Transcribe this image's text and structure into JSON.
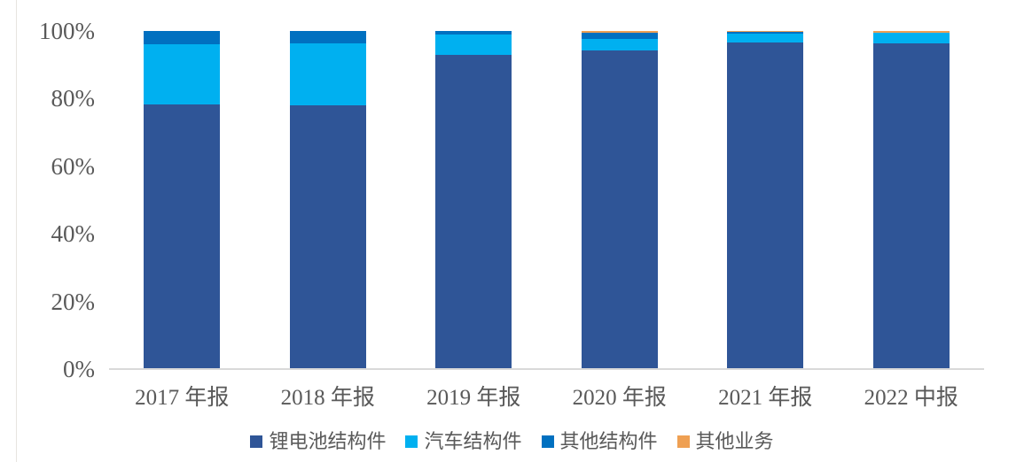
{
  "figure": {
    "background": "#FFFFFF",
    "axis_text_color": "#595959",
    "baseline_color": "#D9D9D9"
  },
  "chart_data": {
    "type": "bar",
    "subtype": "stacked-100-percent",
    "title": "",
    "xlabel": "",
    "ylabel": "",
    "ylim": [
      0,
      100
    ],
    "grid": false,
    "legend_position": "bottom",
    "y_ticks": [
      "100%",
      "80%",
      "60%",
      "40%",
      "20%",
      "0%"
    ],
    "categories": [
      "2017 年报",
      "2018 年报",
      "2019 年报",
      "2020 年报",
      "2021 年报",
      "2022 中报"
    ],
    "series": [
      {
        "name": "锂电池结构件",
        "color": "#2F5597",
        "values": [
          78.2,
          78.0,
          92.9,
          94.3,
          96.6,
          96.3
        ]
      },
      {
        "name": "汽车结构件",
        "color": "#00B0F0",
        "values": [
          17.8,
          18.3,
          6.1,
          3.4,
          2.6,
          3.1
        ]
      },
      {
        "name": "其他结构件",
        "color": "#0070C0",
        "values": [
          4.0,
          3.7,
          1.0,
          1.8,
          0.5,
          0.2
        ]
      },
      {
        "name": "其他业务",
        "color": "#EFA053",
        "values": [
          0.0,
          0.0,
          0.0,
          0.5,
          0.3,
          0.4
        ]
      }
    ]
  }
}
